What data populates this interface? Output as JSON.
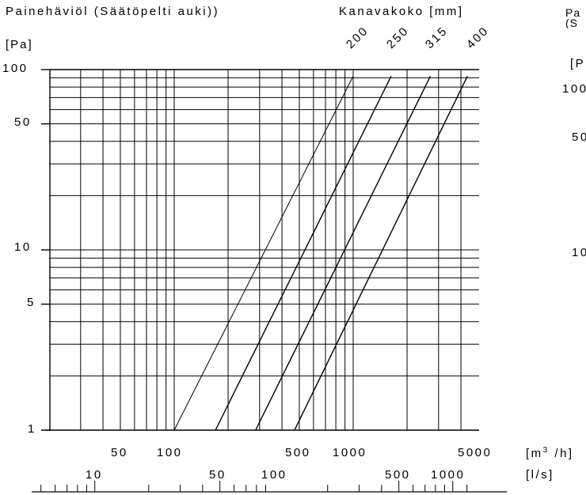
{
  "chart_data": {
    "type": "line",
    "title": "Painehäviöl (Säätöpelti auki))",
    "legend_title": "Kanavakoko [mm]",
    "ylabel": "[Pa]",
    "xlabel": "[m3 /h]",
    "xlabel_base": "[m",
    "xlabel_sup": "3",
    "xlabel_tail": " /h]",
    "x2label": "[l/s]",
    "yscale": "log",
    "xscale": "log",
    "xlim": [
      20,
      5000
    ],
    "ylim": [
      1,
      100
    ],
    "grid": true,
    "yticks": [
      {
        "value": 1,
        "label": "1"
      },
      {
        "value": 5,
        "label": "5"
      },
      {
        "value": 10,
        "label": "10"
      },
      {
        "value": 50,
        "label": "50"
      },
      {
        "value": 100,
        "label": "100"
      }
    ],
    "xticks": [
      {
        "value": 50,
        "label": "50"
      },
      {
        "value": 100,
        "label": "100"
      },
      {
        "value": 500,
        "label": "500"
      },
      {
        "value": 1000,
        "label": "1000"
      },
      {
        "value": 5000,
        "label": "5000"
      }
    ],
    "x2ticks": [
      {
        "value": 10,
        "label": "10"
      },
      {
        "value": 50,
        "label": "50"
      },
      {
        "value": 100,
        "label": "100"
      },
      {
        "value": 500,
        "label": "500"
      },
      {
        "value": 1000,
        "label": "1000"
      }
    ],
    "series": [
      {
        "name": "200",
        "points": [
          [
            100,
            1
          ],
          [
            1000,
            92
          ]
        ]
      },
      {
        "name": "250",
        "points": [
          [
            170,
            1
          ],
          [
            1630,
            92
          ]
        ]
      },
      {
        "name": "315",
        "points": [
          [
            285,
            1
          ],
          [
            2700,
            92
          ]
        ]
      },
      {
        "name": "400",
        "points": [
          [
            470,
            1
          ],
          [
            4350,
            92
          ]
        ]
      }
    ],
    "clipped_panel": {
      "title": "Pa (S",
      "ylabel": "[P",
      "yticks": [
        "100",
        "50",
        "10"
      ]
    }
  }
}
